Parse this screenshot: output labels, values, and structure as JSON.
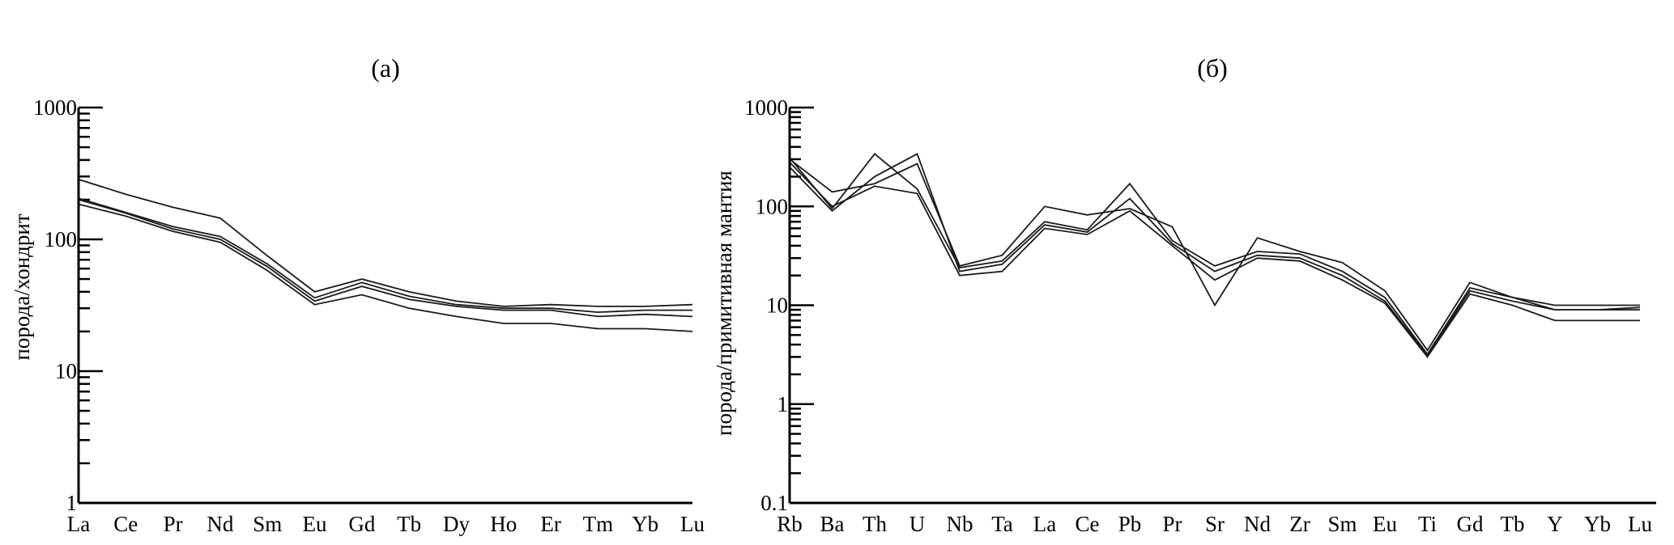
{
  "chart_data": [
    {
      "type": "line",
      "title": "(а)",
      "ylabel": "порода/хондрит",
      "xlabel": "",
      "yscale": "log",
      "ylim": [
        1,
        1000
      ],
      "yticks": [
        "1000",
        "100",
        "10",
        "1"
      ],
      "categories": [
        "La",
        "Ce",
        "Pr",
        "Nd",
        "Sm",
        "Eu",
        "Gd",
        "Tb",
        "Dy",
        "Ho",
        "Er",
        "Tm",
        "Yb",
        "Lu"
      ],
      "grid": false,
      "series": [
        {
          "values": [
            285,
            220,
            175,
            145,
            75,
            40,
            50,
            40,
            34,
            31,
            32,
            31,
            31,
            32
          ]
        },
        {
          "values": [
            205,
            160,
            125,
            105,
            65,
            36,
            47,
            37,
            32,
            30,
            30,
            28,
            29,
            29
          ]
        },
        {
          "values": [
            200,
            158,
            120,
            100,
            62,
            34,
            44,
            35,
            31,
            29,
            29,
            26,
            27,
            26
          ]
        },
        {
          "values": [
            185,
            150,
            115,
            95,
            58,
            32,
            38,
            30,
            26,
            23,
            23,
            21,
            21,
            20
          ]
        }
      ]
    },
    {
      "type": "line",
      "title": "(б)",
      "ylabel": "порода/примитивная мантия",
      "xlabel": "",
      "yscale": "log",
      "ylim": [
        0.1,
        1000
      ],
      "yticks": [
        "1000",
        "100",
        "10",
        "1",
        "0.1"
      ],
      "categories": [
        "Rb",
        "Ba",
        "Th",
        "U",
        "Nb",
        "Ta",
        "La",
        "Ce",
        "Pb",
        "Pr",
        "Sr",
        "Nd",
        "Zr",
        "Sm",
        "Eu",
        "Ti",
        "Gd",
        "Tb",
        "Y",
        "Yb",
        "Lu"
      ],
      "grid": false,
      "series": [
        {
          "values": [
            300,
            140,
            170,
            270,
            25,
            32,
            100,
            82,
            95,
            62,
            10,
            48,
            35,
            27,
            14,
            3.5,
            17,
            12,
            10,
            10,
            10
          ]
        },
        {
          "values": [
            310,
            95,
            340,
            150,
            24,
            28,
            70,
            58,
            170,
            45,
            25,
            35,
            33,
            22,
            12,
            3.2,
            15,
            12,
            9,
            9,
            9.5
          ]
        },
        {
          "values": [
            250,
            90,
            200,
            340,
            22,
            26,
            65,
            55,
            120,
            42,
            22,
            32,
            30,
            20,
            11,
            3.1,
            14,
            11,
            9,
            9,
            9
          ]
        },
        {
          "values": [
            280,
            100,
            160,
            135,
            20,
            22,
            60,
            52,
            90,
            40,
            18,
            30,
            28,
            18,
            10.5,
            3.0,
            13,
            10,
            7,
            7,
            7
          ]
        }
      ]
    }
  ]
}
